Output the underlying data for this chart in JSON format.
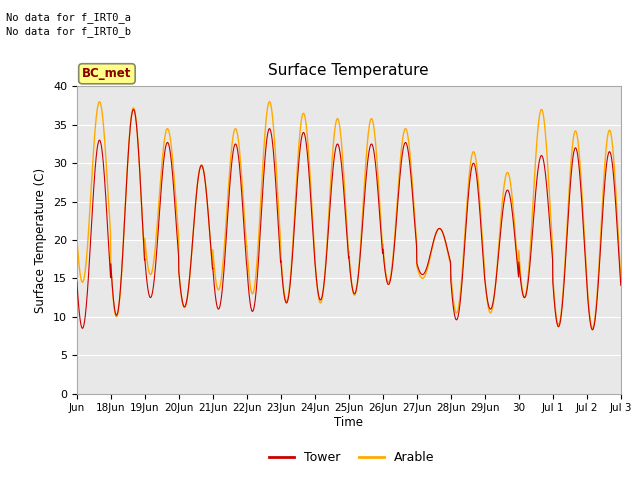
{
  "title": "Surface Temperature",
  "ylabel": "Surface Temperature (C)",
  "xlabel": "Time",
  "annotation_lines": [
    "No data for f_IRT0_a",
    "No data for f_IRT0_b"
  ],
  "legend_label": "BC_met",
  "series_labels": [
    "Tower",
    "Arable"
  ],
  "series_colors": [
    "#cc0000",
    "#ffaa00"
  ],
  "ylim": [
    0,
    40
  ],
  "background_color": "#e8e8e8",
  "tick_labels": [
    "Jun",
    "18Jun",
    "19Jun",
    "20Jun",
    "21Jun",
    "22Jun",
    "23Jun",
    "24Jun",
    "25Jun",
    "26Jun",
    "27Jun",
    "28Jun",
    "29Jun",
    "30",
    "Jul 1",
    "Jul 2",
    "Jul 3"
  ],
  "num_days": 16,
  "day_mins_tower": [
    8.5,
    10.2,
    12.5,
    11.3,
    11.0,
    10.7,
    11.8,
    12.2,
    13.0,
    14.2,
    15.5,
    9.6,
    11.0,
    12.5,
    8.7,
    8.3,
    11.5
  ],
  "day_maxs_tower": [
    33.0,
    37.0,
    32.7,
    29.7,
    32.5,
    34.5,
    34.0,
    32.5,
    32.5,
    32.7,
    21.5,
    30.0,
    26.5,
    31.0,
    32.0,
    31.5,
    12.0
  ],
  "day_mins_arable": [
    14.5,
    10.0,
    15.5,
    11.2,
    13.5,
    13.0,
    12.0,
    11.8,
    12.8,
    14.5,
    15.0,
    10.5,
    10.5,
    12.5,
    9.0,
    8.5,
    11.5
  ],
  "day_maxs_arable": [
    38.0,
    37.2,
    34.5,
    29.8,
    34.5,
    38.0,
    36.5,
    35.8,
    35.8,
    34.5,
    21.5,
    31.5,
    28.8,
    37.0,
    34.2,
    34.3,
    12.0
  ]
}
